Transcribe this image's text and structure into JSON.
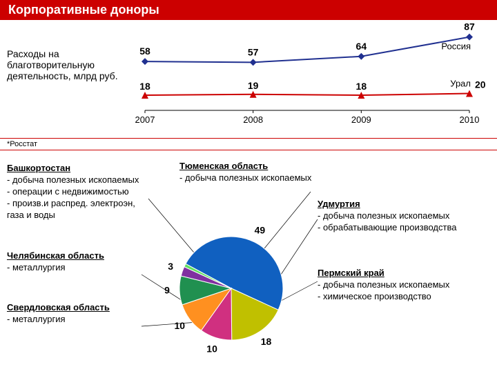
{
  "title": "Корпоративные доноры",
  "left_label": "Расходы на благотворительную деятельность, млрд руб.",
  "footnote": "*Росстат",
  "line_chart": {
    "years": [
      "2007",
      "2008",
      "2009",
      "2010"
    ],
    "russia": {
      "label": "Россия",
      "values": [
        58,
        57,
        64,
        87
      ],
      "color": "#203090",
      "marker": "diamond"
    },
    "ural": {
      "label": "Урал",
      "values": [
        18,
        19,
        18,
        20
      ],
      "color": "#cc0000",
      "marker": "triangle"
    },
    "axis_color": "#000",
    "label_fontsize": 13,
    "value_fontsize": 14
  },
  "pie": {
    "slices": [
      {
        "label": "49",
        "value": 49,
        "color": "#1060c0"
      },
      {
        "label": "18",
        "value": 18,
        "color": "#c0c000"
      },
      {
        "label": "10",
        "value": 10,
        "color": "#d03080"
      },
      {
        "label": "10",
        "value": 10,
        "color": "#ff9020"
      },
      {
        "label": "9",
        "value": 9,
        "color": "#209050"
      },
      {
        "label": "3",
        "value": 3,
        "color": "#8030a0"
      },
      {
        "label": "",
        "value": 1,
        "color": "#60e060"
      }
    ],
    "label_fontsize": 14
  },
  "regions": {
    "bashkortostan": {
      "title": "Башкортостан",
      "items": [
        "- добыча полезных ископаемых",
        "- операции с недвижимостью",
        "- произв.и распред. электроэн,",
        "газа и воды"
      ]
    },
    "chelyabinsk": {
      "title": "Челябинская область",
      "items": [
        "- металлургия"
      ]
    },
    "sverdlovsk": {
      "title": "Свердловская область",
      "items": [
        "- металлургия"
      ]
    },
    "tyumen": {
      "title": "Тюменская область",
      "items": [
        "- добыча полезных ископаемых"
      ]
    },
    "udmurtia": {
      "title": "Удмуртия",
      "items": [
        "- добыча полезных ископаемых",
        "- обрабатывающие производства"
      ]
    },
    "perm": {
      "title": "Пермский край",
      "items": [
        "- добыча полезных ископаемых",
        "- химическое производство"
      ]
    }
  }
}
